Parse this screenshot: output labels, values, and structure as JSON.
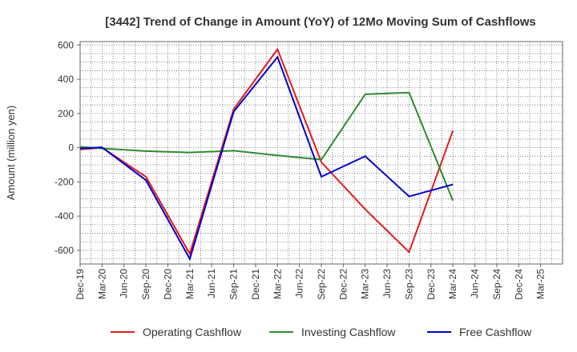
{
  "chart_data": {
    "type": "line",
    "title": "[3442]  Trend of Change in Amount (YoY) of 12Mo Moving Sum of Cashflows",
    "xlabel": "",
    "ylabel": "Amount (million yen)",
    "ylim": [
      -680,
      620
    ],
    "yticks": [
      600,
      400,
      200,
      0,
      -200,
      -400,
      -600
    ],
    "ytick_labels": [
      "600",
      "400",
      "200",
      "0",
      "-200",
      "-400",
      "-600"
    ],
    "categories": [
      "Dec-19",
      "Mar-20",
      "Jun-20",
      "Sep-20",
      "Dec-20",
      "Mar-21",
      "Jun-21",
      "Sep-21",
      "Dec-21",
      "Mar-22",
      "Jun-22",
      "Sep-22",
      "Dec-22",
      "Mar-23",
      "Jun-23",
      "Sep-23",
      "Dec-23",
      "Mar-24",
      "Jun-24",
      "Sep-24",
      "Dec-24",
      "Mar-25"
    ],
    "grid": true,
    "legend_position": "bottom",
    "series": [
      {
        "name": "Operating Cashflow",
        "color": "#e31a1c",
        "values": [
          -10,
          0,
          null,
          -170,
          null,
          -620,
          null,
          225,
          null,
          575,
          null,
          -85,
          null,
          -360,
          null,
          -610,
          null,
          100,
          null,
          null,
          null,
          null
        ]
      },
      {
        "name": "Investing Cashflow",
        "color": "#2e8b2e",
        "values": [
          5,
          -5,
          null,
          -20,
          null,
          -28,
          null,
          -18,
          null,
          -45,
          null,
          -70,
          null,
          312,
          null,
          322,
          null,
          -310,
          null,
          null,
          null,
          null
        ]
      },
      {
        "name": "Free Cashflow",
        "color": "#0000cc",
        "values": [
          -5,
          2,
          null,
          -190,
          null,
          -650,
          null,
          210,
          null,
          530,
          null,
          -170,
          null,
          -50,
          null,
          -285,
          null,
          -215,
          null,
          null,
          null,
          null
        ]
      }
    ]
  }
}
